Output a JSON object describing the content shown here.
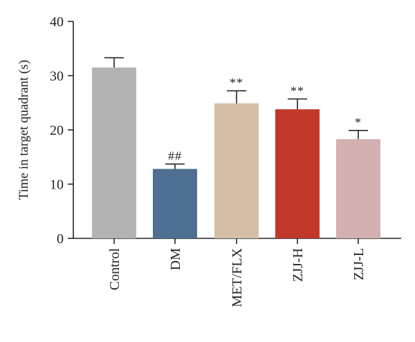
{
  "chart_data": {
    "type": "bar",
    "title": "",
    "xlabel": "",
    "ylabel": "Time in target quadrant (s)",
    "ylim": [
      0,
      40
    ],
    "yticks": [
      0,
      10,
      20,
      30,
      40
    ],
    "grid": false,
    "categories": [
      "Control",
      "DM",
      "MET/FLX",
      "ZJJ-H",
      "ZJJ-L"
    ],
    "values": [
      31.5,
      12.8,
      24.9,
      23.8,
      18.3
    ],
    "errors": [
      1.8,
      0.9,
      2.3,
      1.9,
      1.6
    ],
    "annotations": [
      "",
      "##",
      "**",
      "**",
      "*"
    ],
    "colors": [
      "#b3b3b3",
      "#4e6f91",
      "#d4bfa6",
      "#c0392b",
      "#d4b0b3"
    ]
  }
}
